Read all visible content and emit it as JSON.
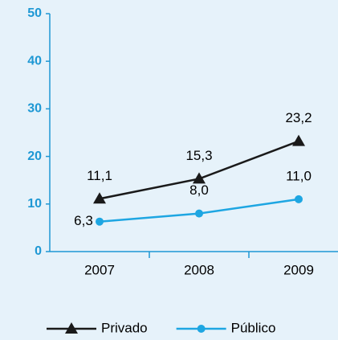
{
  "chart_data": {
    "type": "line",
    "categories": [
      "2007",
      "2008",
      "2009"
    ],
    "series": [
      {
        "name": "Privado",
        "color": "#1a1a1a",
        "marker": "triangle",
        "values": [
          11.1,
          15.3,
          23.2
        ],
        "value_labels": [
          "11,1",
          "15,3",
          "23,2"
        ]
      },
      {
        "name": "Público",
        "color": "#1ea6e2",
        "marker": "circle",
        "values": [
          6.3,
          8.0,
          11.0
        ],
        "value_labels": [
          "6,3",
          "8,0",
          "11,0"
        ]
      }
    ],
    "ylim": [
      0,
      50
    ],
    "yticks": [
      0,
      10,
      20,
      30,
      40,
      50
    ],
    "axis_color": "#1e98d4",
    "legend": "bottom"
  }
}
